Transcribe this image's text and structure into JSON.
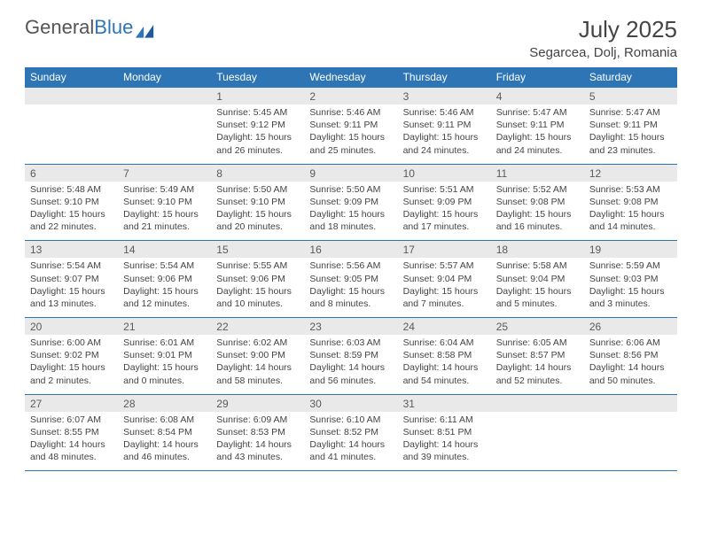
{
  "brand": {
    "part1": "General",
    "part2": "Blue"
  },
  "title": "July 2025",
  "location": "Segarcea, Dolj, Romania",
  "colors": {
    "accent": "#2e75b6",
    "header_bg": "#2e75b6",
    "num_row_bg": "#e9e9e9",
    "text": "#444444"
  },
  "weekdays": [
    "Sunday",
    "Monday",
    "Tuesday",
    "Wednesday",
    "Thursday",
    "Friday",
    "Saturday"
  ],
  "weeks": [
    {
      "nums": [
        "",
        "",
        "1",
        "2",
        "3",
        "4",
        "5"
      ],
      "cells": [
        null,
        null,
        {
          "sunrise": "Sunrise: 5:45 AM",
          "sunset": "Sunset: 9:12 PM",
          "daylight": "Daylight: 15 hours and 26 minutes."
        },
        {
          "sunrise": "Sunrise: 5:46 AM",
          "sunset": "Sunset: 9:11 PM",
          "daylight": "Daylight: 15 hours and 25 minutes."
        },
        {
          "sunrise": "Sunrise: 5:46 AM",
          "sunset": "Sunset: 9:11 PM",
          "daylight": "Daylight: 15 hours and 24 minutes."
        },
        {
          "sunrise": "Sunrise: 5:47 AM",
          "sunset": "Sunset: 9:11 PM",
          "daylight": "Daylight: 15 hours and 24 minutes."
        },
        {
          "sunrise": "Sunrise: 5:47 AM",
          "sunset": "Sunset: 9:11 PM",
          "daylight": "Daylight: 15 hours and 23 minutes."
        }
      ]
    },
    {
      "nums": [
        "6",
        "7",
        "8",
        "9",
        "10",
        "11",
        "12"
      ],
      "cells": [
        {
          "sunrise": "Sunrise: 5:48 AM",
          "sunset": "Sunset: 9:10 PM",
          "daylight": "Daylight: 15 hours and 22 minutes."
        },
        {
          "sunrise": "Sunrise: 5:49 AM",
          "sunset": "Sunset: 9:10 PM",
          "daylight": "Daylight: 15 hours and 21 minutes."
        },
        {
          "sunrise": "Sunrise: 5:50 AM",
          "sunset": "Sunset: 9:10 PM",
          "daylight": "Daylight: 15 hours and 20 minutes."
        },
        {
          "sunrise": "Sunrise: 5:50 AM",
          "sunset": "Sunset: 9:09 PM",
          "daylight": "Daylight: 15 hours and 18 minutes."
        },
        {
          "sunrise": "Sunrise: 5:51 AM",
          "sunset": "Sunset: 9:09 PM",
          "daylight": "Daylight: 15 hours and 17 minutes."
        },
        {
          "sunrise": "Sunrise: 5:52 AM",
          "sunset": "Sunset: 9:08 PM",
          "daylight": "Daylight: 15 hours and 16 minutes."
        },
        {
          "sunrise": "Sunrise: 5:53 AM",
          "sunset": "Sunset: 9:08 PM",
          "daylight": "Daylight: 15 hours and 14 minutes."
        }
      ]
    },
    {
      "nums": [
        "13",
        "14",
        "15",
        "16",
        "17",
        "18",
        "19"
      ],
      "cells": [
        {
          "sunrise": "Sunrise: 5:54 AM",
          "sunset": "Sunset: 9:07 PM",
          "daylight": "Daylight: 15 hours and 13 minutes."
        },
        {
          "sunrise": "Sunrise: 5:54 AM",
          "sunset": "Sunset: 9:06 PM",
          "daylight": "Daylight: 15 hours and 12 minutes."
        },
        {
          "sunrise": "Sunrise: 5:55 AM",
          "sunset": "Sunset: 9:06 PM",
          "daylight": "Daylight: 15 hours and 10 minutes."
        },
        {
          "sunrise": "Sunrise: 5:56 AM",
          "sunset": "Sunset: 9:05 PM",
          "daylight": "Daylight: 15 hours and 8 minutes."
        },
        {
          "sunrise": "Sunrise: 5:57 AM",
          "sunset": "Sunset: 9:04 PM",
          "daylight": "Daylight: 15 hours and 7 minutes."
        },
        {
          "sunrise": "Sunrise: 5:58 AM",
          "sunset": "Sunset: 9:04 PM",
          "daylight": "Daylight: 15 hours and 5 minutes."
        },
        {
          "sunrise": "Sunrise: 5:59 AM",
          "sunset": "Sunset: 9:03 PM",
          "daylight": "Daylight: 15 hours and 3 minutes."
        }
      ]
    },
    {
      "nums": [
        "20",
        "21",
        "22",
        "23",
        "24",
        "25",
        "26"
      ],
      "cells": [
        {
          "sunrise": "Sunrise: 6:00 AM",
          "sunset": "Sunset: 9:02 PM",
          "daylight": "Daylight: 15 hours and 2 minutes."
        },
        {
          "sunrise": "Sunrise: 6:01 AM",
          "sunset": "Sunset: 9:01 PM",
          "daylight": "Daylight: 15 hours and 0 minutes."
        },
        {
          "sunrise": "Sunrise: 6:02 AM",
          "sunset": "Sunset: 9:00 PM",
          "daylight": "Daylight: 14 hours and 58 minutes."
        },
        {
          "sunrise": "Sunrise: 6:03 AM",
          "sunset": "Sunset: 8:59 PM",
          "daylight": "Daylight: 14 hours and 56 minutes."
        },
        {
          "sunrise": "Sunrise: 6:04 AM",
          "sunset": "Sunset: 8:58 PM",
          "daylight": "Daylight: 14 hours and 54 minutes."
        },
        {
          "sunrise": "Sunrise: 6:05 AM",
          "sunset": "Sunset: 8:57 PM",
          "daylight": "Daylight: 14 hours and 52 minutes."
        },
        {
          "sunrise": "Sunrise: 6:06 AM",
          "sunset": "Sunset: 8:56 PM",
          "daylight": "Daylight: 14 hours and 50 minutes."
        }
      ]
    },
    {
      "nums": [
        "27",
        "28",
        "29",
        "30",
        "31",
        "",
        ""
      ],
      "cells": [
        {
          "sunrise": "Sunrise: 6:07 AM",
          "sunset": "Sunset: 8:55 PM",
          "daylight": "Daylight: 14 hours and 48 minutes."
        },
        {
          "sunrise": "Sunrise: 6:08 AM",
          "sunset": "Sunset: 8:54 PM",
          "daylight": "Daylight: 14 hours and 46 minutes."
        },
        {
          "sunrise": "Sunrise: 6:09 AM",
          "sunset": "Sunset: 8:53 PM",
          "daylight": "Daylight: 14 hours and 43 minutes."
        },
        {
          "sunrise": "Sunrise: 6:10 AM",
          "sunset": "Sunset: 8:52 PM",
          "daylight": "Daylight: 14 hours and 41 minutes."
        },
        {
          "sunrise": "Sunrise: 6:11 AM",
          "sunset": "Sunset: 8:51 PM",
          "daylight": "Daylight: 14 hours and 39 minutes."
        },
        null,
        null
      ]
    }
  ]
}
